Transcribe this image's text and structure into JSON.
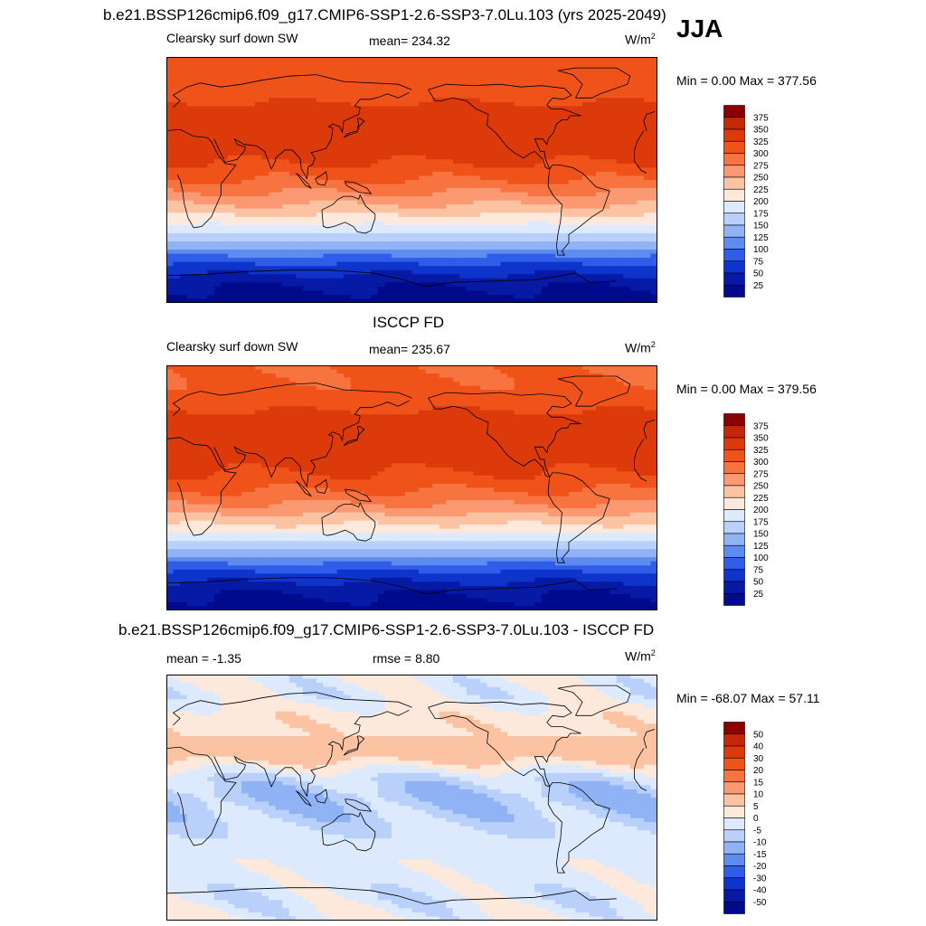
{
  "header": {
    "title": "b.e21.BSSP126cmip6.f09_g17.CMIP6-SSP1-2.6-SSP3-7.0Lu.103 (yrs 2025-2049)",
    "season": "JJA"
  },
  "panels": [
    {
      "title": "",
      "left_label": "Clearsky surf down SW",
      "center_label": "mean= 234.32",
      "unit": "W/m",
      "unit_sup": "2",
      "minmax": "Min =   0.00 Max = 377.56"
    },
    {
      "title": "ISCCP FD",
      "left_label": "Clearsky surf down SW",
      "center_label": "mean= 235.67",
      "unit": "W/m",
      "unit_sup": "2",
      "minmax": "Min =   0.00 Max = 379.56"
    },
    {
      "title": "b.e21.BSSP126cmip6.f09_g17.CMIP6-SSP1-2.6-SSP3-7.0Lu.103 - ISCCP FD",
      "left_label": "mean =  -1.35",
      "center_label": "rmse =   8.80",
      "unit": "W/m",
      "unit_sup": "2",
      "minmax": "Min = -68.07 Max =  57.11"
    }
  ],
  "chart_data": [
    {
      "type": "heatmap",
      "title": "Clearsky surf down SW",
      "mean": 234.32,
      "min": 0.0,
      "max": 377.56,
      "units": "W/m2",
      "colorbar_levels": [
        375,
        350,
        325,
        300,
        275,
        250,
        225,
        200,
        175,
        150,
        125,
        100,
        75,
        50,
        25
      ],
      "colorbar_colors": [
        "#8b0000",
        "#c42808",
        "#dd3a0b",
        "#f0531a",
        "#f77340",
        "#fb9a72",
        "#fcc3a3",
        "#fde9dc",
        "#ddeafd",
        "#b8d0fa",
        "#8fb3f5",
        "#5d8bf0",
        "#2f5de8",
        "#0f34cc",
        "#061aa5",
        "#000a8c"
      ],
      "zonal_profile_south_to_north": [
        {
          "lat": -90,
          "value": 10
        },
        {
          "lat": -75,
          "value": 30
        },
        {
          "lat": -60,
          "value": 80
        },
        {
          "lat": -45,
          "value": 150
        },
        {
          "lat": -30,
          "value": 210
        },
        {
          "lat": -15,
          "value": 260
        },
        {
          "lat": 0,
          "value": 300
        },
        {
          "lat": 15,
          "value": 330
        },
        {
          "lat": 30,
          "value": 345
        },
        {
          "lat": 45,
          "value": 340
        },
        {
          "lat": 60,
          "value": 320
        },
        {
          "lat": 75,
          "value": 315
        },
        {
          "lat": 90,
          "value": 315
        }
      ]
    },
    {
      "type": "heatmap",
      "title": "ISCCP FD",
      "mean": 235.67,
      "min": 0.0,
      "max": 379.56,
      "units": "W/m2",
      "colorbar_levels": [
        375,
        350,
        325,
        300,
        275,
        250,
        225,
        200,
        175,
        150,
        125,
        100,
        75,
        50,
        25
      ],
      "colorbar_colors": [
        "#8b0000",
        "#c42808",
        "#dd3a0b",
        "#f0531a",
        "#f77340",
        "#fb9a72",
        "#fcc3a3",
        "#fde9dc",
        "#ddeafd",
        "#b8d0fa",
        "#8fb3f5",
        "#5d8bf0",
        "#2f5de8",
        "#0f34cc",
        "#061aa5",
        "#000a8c"
      ],
      "zonal_profile_south_to_north": [
        {
          "lat": -90,
          "value": 10
        },
        {
          "lat": -75,
          "value": 30
        },
        {
          "lat": -60,
          "value": 80
        },
        {
          "lat": -45,
          "value": 150
        },
        {
          "lat": -30,
          "value": 215
        },
        {
          "lat": -15,
          "value": 265
        },
        {
          "lat": 0,
          "value": 305
        },
        {
          "lat": 15,
          "value": 330
        },
        {
          "lat": 30,
          "value": 345
        },
        {
          "lat": 45,
          "value": 340
        },
        {
          "lat": 60,
          "value": 320
        },
        {
          "lat": 75,
          "value": 305
        },
        {
          "lat": 90,
          "value": 300
        }
      ]
    },
    {
      "type": "heatmap",
      "title": "b.e21.BSSP126cmip6.f09_g17.CMIP6-SSP1-2.6-SSP3-7.0Lu.103 - ISCCP FD",
      "mean": -1.35,
      "rmse": 8.8,
      "min": -68.07,
      "max": 57.11,
      "units": "W/m2",
      "colorbar_levels": [
        50,
        40,
        30,
        20,
        15,
        10,
        5,
        0,
        -5,
        -10,
        -15,
        -20,
        -30,
        -40,
        -50
      ],
      "colorbar_colors": [
        "#8b0000",
        "#c42808",
        "#dd3a0b",
        "#f0531a",
        "#f77340",
        "#fb9a72",
        "#fcc3a3",
        "#fde9dc",
        "#ddeafd",
        "#b8d0fa",
        "#8fb3f5",
        "#5d8bf0",
        "#2f5de8",
        "#0f34cc",
        "#061aa5",
        "#000a8c"
      ],
      "zonal_profile_south_to_north": [
        {
          "lat": -90,
          "value": 0
        },
        {
          "lat": -75,
          "value": -3
        },
        {
          "lat": -60,
          "value": -2
        },
        {
          "lat": -45,
          "value": 0
        },
        {
          "lat": -30,
          "value": -3
        },
        {
          "lat": -15,
          "value": -7
        },
        {
          "lat": 0,
          "value": -10
        },
        {
          "lat": 15,
          "value": -5
        },
        {
          "lat": 30,
          "value": 8
        },
        {
          "lat": 45,
          "value": 5
        },
        {
          "lat": 60,
          "value": 3
        },
        {
          "lat": 75,
          "value": -2
        },
        {
          "lat": 90,
          "value": 0
        }
      ]
    }
  ]
}
